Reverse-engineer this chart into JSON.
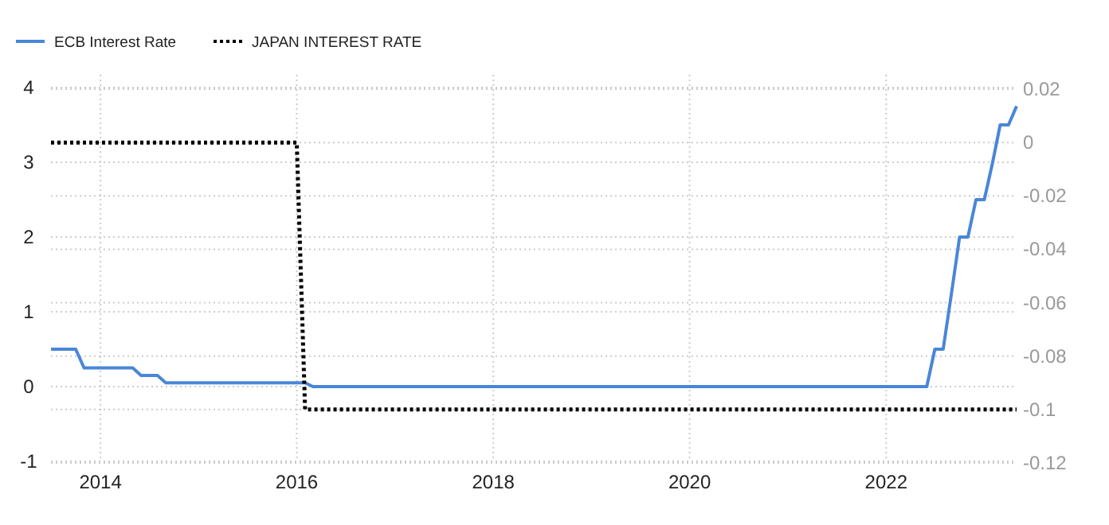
{
  "chart_data": {
    "type": "line",
    "x": [
      "2013-07",
      "2013-10",
      "2013-11",
      "2014-05",
      "2014-06",
      "2014-08",
      "2014-09",
      "2016-02",
      "2016-03",
      "2022-06",
      "2022-07",
      "2022-08",
      "2022-09",
      "2022-10",
      "2022-11",
      "2022-12",
      "2023-01",
      "2023-02",
      "2023-03",
      "2023-04",
      "2023-05"
    ],
    "series": [
      {
        "name": "ECB Interest Rate",
        "color": "#4a86d8",
        "line_style": "solid",
        "values": [
          0.5,
          0.5,
          0.25,
          0.25,
          0.15,
          0.15,
          0.05,
          0.05,
          0,
          0,
          0.5,
          0.5,
          1.25,
          2,
          2,
          2.5,
          2.5,
          3,
          3.5,
          3.5,
          3.75
        ]
      },
      {
        "name": "JAPAN INTEREST RATE",
        "color": "#000000",
        "line_style": "dotted",
        "axis": "y2",
        "x": [
          "2013-07",
          "2016-01",
          "2016-02",
          "2023-05"
        ],
        "values": [
          0,
          0,
          -0.1,
          -0.1
        ]
      }
    ],
    "xlim": [
      "2013-07",
      "2023-05"
    ],
    "xticks": [
      {
        "value": "2014",
        "label": "2014"
      },
      {
        "value": "2016",
        "label": "2016"
      },
      {
        "value": "2018",
        "label": "2018"
      },
      {
        "value": "2020",
        "label": "2020"
      },
      {
        "value": "2022",
        "label": "2022"
      }
    ],
    "ylim": [
      -1,
      4
    ],
    "yticks": [
      -1,
      0,
      1,
      2,
      3,
      4
    ],
    "y2lim": [
      -0.12,
      0.02
    ],
    "y2ticks": [
      -0.12,
      -0.1,
      -0.08,
      -0.06,
      -0.04,
      -0.02,
      0,
      0.02
    ],
    "grid": true,
    "legend": "top left"
  }
}
